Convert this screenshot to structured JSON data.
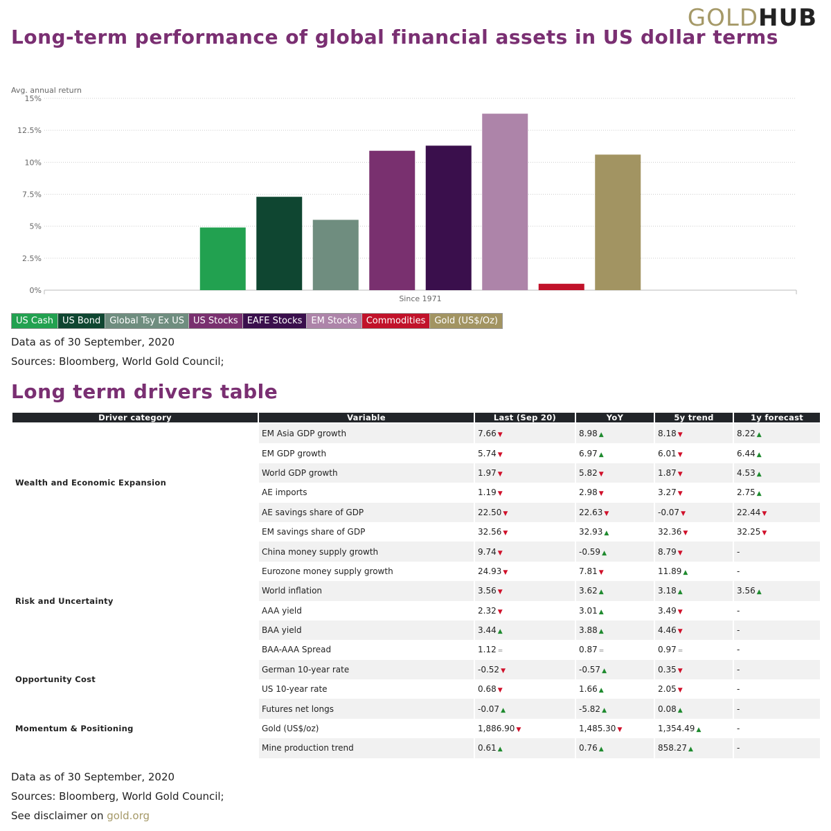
{
  "brand": {
    "part1": "GOLD",
    "part2": "HUB"
  },
  "chart_title": "Long-term performance of global financial assets in US dollar terms",
  "chart_data": {
    "type": "bar",
    "title": "Long-term performance of global financial assets in US dollar terms",
    "ylabel": "Avg. annual return",
    "xlabel": "",
    "categories": [
      "Since 1971"
    ],
    "ylim": [
      0,
      15
    ],
    "yticks": [
      "0%",
      "2.5%",
      "5%",
      "7.5%",
      "10%",
      "12.5%",
      "15%"
    ],
    "ytick_values": [
      0,
      2.5,
      5,
      7.5,
      10,
      12.5,
      15
    ],
    "grid": true,
    "legend_position": "bottom",
    "series": [
      {
        "name": "US Cash",
        "values": [
          4.9
        ],
        "color": "#22a150"
      },
      {
        "name": "US Bond",
        "values": [
          7.3
        ],
        "color": "#0f4631"
      },
      {
        "name": "Global Tsy Ex US",
        "values": [
          5.5
        ],
        "color": "#6f8d7f"
      },
      {
        "name": "US Stocks",
        "values": [
          10.9
        ],
        "color": "#79306f"
      },
      {
        "name": "EAFE Stocks",
        "values": [
          11.3
        ],
        "color": "#3a0f4c"
      },
      {
        "name": "EM Stocks",
        "values": [
          13.8
        ],
        "color": "#ad84a9"
      },
      {
        "name": "Commodities",
        "values": [
          0.5
        ],
        "color": "#c1122a"
      },
      {
        "name": "Gold (US$/Oz)",
        "values": [
          10.6
        ],
        "color": "#a29462"
      }
    ]
  },
  "chart_notes": {
    "date": "Data as of 30 September, 2020",
    "sources": "Sources: Bloomberg, World Gold Council;"
  },
  "table_title": "Long term drivers table",
  "table": {
    "headers": [
      "Driver category",
      "Variable",
      "Last (Sep 20)",
      "YoY",
      "5y trend",
      "1y forecast"
    ],
    "categories": [
      {
        "name": "Wealth and Economic Expansion",
        "rows": 6
      },
      {
        "name": "Risk and Uncertainty",
        "rows": 6
      },
      {
        "name": "Opportunity Cost",
        "rows": 2
      },
      {
        "name": "Momentum & Positioning",
        "rows": 3
      }
    ],
    "rows": [
      {
        "variable": "EM Asia GDP growth",
        "last": [
          "7.66",
          "down"
        ],
        "yoy": [
          "8.98",
          "up"
        ],
        "trend": [
          "8.18",
          "down"
        ],
        "forecast": [
          "8.22",
          "up"
        ]
      },
      {
        "variable": "EM GDP growth",
        "last": [
          "5.74",
          "down"
        ],
        "yoy": [
          "6.97",
          "up"
        ],
        "trend": [
          "6.01",
          "down"
        ],
        "forecast": [
          "6.44",
          "up"
        ]
      },
      {
        "variable": "World GDP growth",
        "last": [
          "1.97",
          "down"
        ],
        "yoy": [
          "5.82",
          "down"
        ],
        "trend": [
          "1.87",
          "down"
        ],
        "forecast": [
          "4.53",
          "up"
        ]
      },
      {
        "variable": "AE imports",
        "last": [
          "1.19",
          "down"
        ],
        "yoy": [
          "2.98",
          "down"
        ],
        "trend": [
          "3.27",
          "down"
        ],
        "forecast": [
          "2.75",
          "up"
        ]
      },
      {
        "variable": "AE savings share of GDP",
        "last": [
          "22.50",
          "down"
        ],
        "yoy": [
          "22.63",
          "down"
        ],
        "trend": [
          "-0.07",
          "down"
        ],
        "forecast": [
          "22.44",
          "down"
        ]
      },
      {
        "variable": "EM savings share of GDP",
        "last": [
          "32.56",
          "down"
        ],
        "yoy": [
          "32.93",
          "up"
        ],
        "trend": [
          "32.36",
          "down"
        ],
        "forecast": [
          "32.25",
          "down"
        ]
      },
      {
        "variable": "China money supply growth",
        "last": [
          "9.74",
          "down"
        ],
        "yoy": [
          "-0.59",
          "up"
        ],
        "trend": [
          "8.79",
          "down"
        ],
        "forecast": [
          "-",
          ""
        ]
      },
      {
        "variable": "Eurozone money supply growth",
        "last": [
          "24.93",
          "down"
        ],
        "yoy": [
          "7.81",
          "down"
        ],
        "trend": [
          "11.89",
          "up"
        ],
        "forecast": [
          "-",
          ""
        ]
      },
      {
        "variable": "World inflation",
        "last": [
          "3.56",
          "down"
        ],
        "yoy": [
          "3.62",
          "up"
        ],
        "trend": [
          "3.18",
          "up"
        ],
        "forecast": [
          "3.56",
          "up"
        ]
      },
      {
        "variable": "AAA yield",
        "last": [
          "2.32",
          "down"
        ],
        "yoy": [
          "3.01",
          "up"
        ],
        "trend": [
          "3.49",
          "down"
        ],
        "forecast": [
          "-",
          ""
        ]
      },
      {
        "variable": "BAA yield",
        "last": [
          "3.44",
          "up"
        ],
        "yoy": [
          "3.88",
          "up"
        ],
        "trend": [
          "4.46",
          "down"
        ],
        "forecast": [
          "-",
          ""
        ]
      },
      {
        "variable": "BAA-AAA Spread",
        "last": [
          "1.12",
          "eq"
        ],
        "yoy": [
          "0.87",
          "eq"
        ],
        "trend": [
          "0.97",
          "eq"
        ],
        "forecast": [
          "-",
          ""
        ]
      },
      {
        "variable": "German 10-year rate",
        "last": [
          "-0.52",
          "down"
        ],
        "yoy": [
          "-0.57",
          "up"
        ],
        "trend": [
          "0.35",
          "down"
        ],
        "forecast": [
          "-",
          ""
        ]
      },
      {
        "variable": "US 10-year rate",
        "last": [
          "0.68",
          "down"
        ],
        "yoy": [
          "1.66",
          "up"
        ],
        "trend": [
          "2.05",
          "down"
        ],
        "forecast": [
          "-",
          ""
        ]
      },
      {
        "variable": "Futures net longs",
        "last": [
          "-0.07",
          "up"
        ],
        "yoy": [
          "-5.82",
          "up"
        ],
        "trend": [
          "0.08",
          "up"
        ],
        "forecast": [
          "-",
          ""
        ]
      },
      {
        "variable": "Gold (US$/oz)",
        "last": [
          "1,886.90",
          "down"
        ],
        "yoy": [
          "1,485.30",
          "down"
        ],
        "trend": [
          "1,354.49",
          "up"
        ],
        "forecast": [
          "-",
          ""
        ]
      },
      {
        "variable": "Mine production trend",
        "last": [
          "0.61",
          "up"
        ],
        "yoy": [
          "0.76",
          "up"
        ],
        "trend": [
          "858.27",
          "up"
        ],
        "forecast": [
          "-",
          ""
        ]
      }
    ]
  },
  "table_notes": {
    "date": "Data as of 30 September, 2020",
    "sources": "Sources: Bloomberg, World Gold Council;",
    "disclaimer_prefix": "See disclaimer on ",
    "disclaimer_link": "gold.org"
  },
  "arrows": {
    "up": "▲",
    "down": "▼",
    "eq": "="
  }
}
